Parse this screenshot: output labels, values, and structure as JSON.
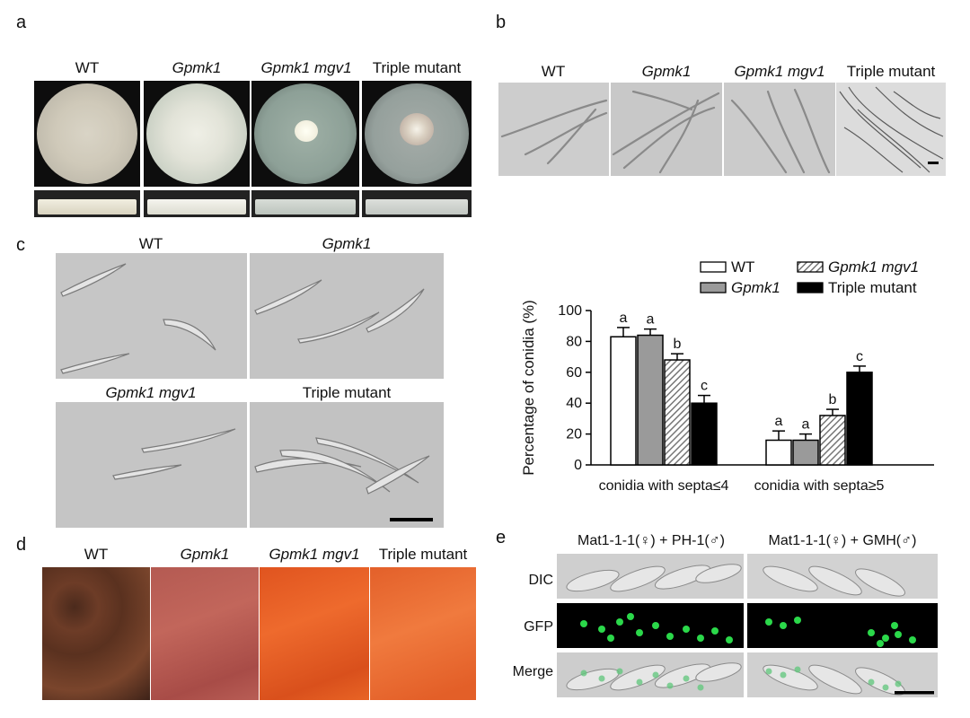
{
  "panel_a": {
    "letter": "a",
    "labels": [
      "WT",
      "Gpmk1",
      "Gpmk1 mgv1",
      "Triple mutant"
    ]
  },
  "panel_b": {
    "letter": "b",
    "labels": [
      "WT",
      "Gpmk1",
      "Gpmk1 mgv1",
      "Triple mutant"
    ]
  },
  "panel_c": {
    "letter": "c",
    "labels": [
      "WT",
      "Gpmk1",
      "Gpmk1 mgv1",
      "Triple mutant"
    ]
  },
  "panel_d": {
    "letter": "d",
    "labels": [
      "WT",
      "Gpmk1",
      "Gpmk1 mgv1",
      "Triple mutant"
    ]
  },
  "panel_e": {
    "letter": "e",
    "col_labels": [
      "Mat1-1-1(♀) + PH-1(♂)",
      "Mat1-1-1(♀) + GMH(♂)"
    ],
    "row_labels": [
      "DIC",
      "GFP",
      "Merge"
    ]
  },
  "chart_data": {
    "type": "bar",
    "ylabel": "Percentage of conidia (%)",
    "ylim": [
      0,
      100
    ],
    "yticks": [
      "0",
      "20",
      "40",
      "60",
      "80",
      "100"
    ],
    "categories": [
      "conidia with septa≤4",
      "conidia with septa≥5"
    ],
    "series": [
      {
        "name": "WT",
        "values": [
          83,
          16
        ],
        "errors": [
          6,
          6
        ],
        "letters": [
          "a",
          "a"
        ],
        "fill": "#ffffff"
      },
      {
        "name": "Gpmk1",
        "values": [
          84,
          16
        ],
        "errors": [
          4,
          4
        ],
        "letters": [
          "a",
          "a"
        ],
        "fill": "#9a9a9a"
      },
      {
        "name": "Gpmk1 mgv1",
        "values": [
          68,
          32
        ],
        "errors": [
          4,
          4
        ],
        "letters": [
          "b",
          "b"
        ],
        "fill": "hatch"
      },
      {
        "name": "Triple mutant",
        "values": [
          40,
          60
        ],
        "errors": [
          5,
          4
        ],
        "letters": [
          "c",
          "c"
        ],
        "fill": "#000000"
      }
    ],
    "legend_position": "top"
  }
}
